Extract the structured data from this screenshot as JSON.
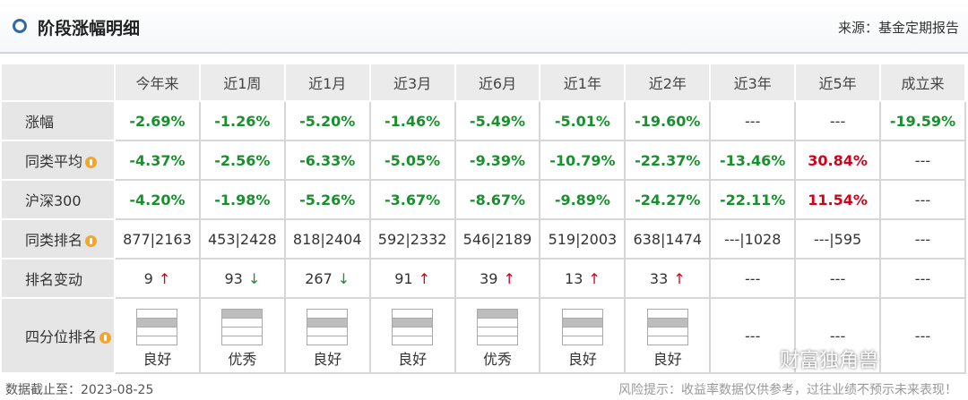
{
  "header": {
    "title": "阶段涨幅明细",
    "source": "来源：基金定期报告"
  },
  "table": {
    "columns": [
      "今年来",
      "近1周",
      "近1月",
      "近3月",
      "近6月",
      "近1年",
      "近2年",
      "近3年",
      "近5年",
      "成立来"
    ],
    "rows": [
      {
        "label": "涨幅",
        "cells": [
          "-2.69%",
          "-1.26%",
          "-5.20%",
          "-1.46%",
          "-5.49%",
          "-5.01%",
          "-19.60%",
          "---",
          "---",
          "-19.59%"
        ]
      },
      {
        "label": "同类平均",
        "help": true,
        "cells": [
          "-4.37%",
          "-2.56%",
          "-6.33%",
          "-5.05%",
          "-9.39%",
          "-10.79%",
          "-22.37%",
          "-13.46%",
          "30.84%",
          "---"
        ]
      },
      {
        "label": "沪深300",
        "cells": [
          "-4.20%",
          "-1.98%",
          "-5.26%",
          "-3.67%",
          "-8.67%",
          "-9.89%",
          "-24.27%",
          "-22.11%",
          "11.54%",
          "---"
        ]
      },
      {
        "label": "同类排名",
        "help": true,
        "cells": [
          "877|2163",
          "453|2428",
          "818|2404",
          "592|2332",
          "546|2189",
          "519|2003",
          "638|1474",
          "---|1028",
          "---|595",
          "---"
        ]
      },
      {
        "label": "排名变动",
        "cells": [
          {
            "text": "9",
            "arrow": "↑",
            "color": "#d0021b"
          },
          {
            "text": "93",
            "arrow": "↓",
            "color": "#1a8f2e"
          },
          {
            "text": "267",
            "arrow": "↓",
            "color": "#1a8f2e"
          },
          {
            "text": "91",
            "arrow": "↑",
            "color": "#d0021b"
          },
          {
            "text": "39",
            "arrow": "↑",
            "color": "#d0021b"
          },
          {
            "text": "13",
            "arrow": "↑",
            "color": "#d0021b"
          },
          {
            "text": "33",
            "arrow": "↑",
            "color": "#d0021b"
          },
          "---",
          "---",
          "---"
        ]
      },
      {
        "label": "四分位排名",
        "help": true,
        "cells": [
          {
            "label": "良好"
          },
          {
            "label": "优秀"
          },
          {
            "label": "良好"
          },
          {
            "label": "良好"
          },
          {
            "label": "优秀"
          },
          {
            "label": "良好"
          },
          {
            "label": "良好"
          },
          "---",
          "---",
          "---"
        ]
      }
    ]
  },
  "footer": {
    "date": "数据截止至：2023-08-25",
    "risk": "风险提示：收益率数据仅供参考，过往业绩不预示未来表现！",
    "watermark": "财富独角兽"
  }
}
